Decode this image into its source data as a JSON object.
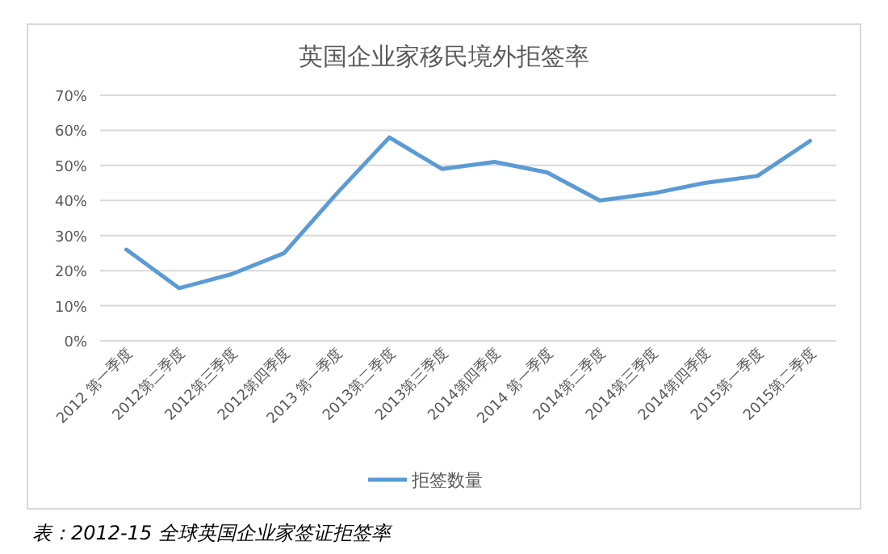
{
  "chart_data": {
    "type": "line",
    "title": "英国企业家移民境外拒签率",
    "categories": [
      "2012 第一季度",
      "2012第二季度",
      "2012第三季度",
      "2012第四季度",
      "2013 第一季度",
      "2013第二季度",
      "2013第三季度",
      "2014第四季度",
      "2014 第一季度",
      "2014第二季度",
      "2014第三季度",
      "2014第四季度",
      "2015第一季度",
      "2015第二季度"
    ],
    "series": [
      {
        "name": "拒签数量",
        "color": "#5b9bd5",
        "values": [
          26,
          15,
          19,
          25,
          42,
          58,
          49,
          51,
          48,
          40,
          42,
          45,
          47,
          57
        ]
      }
    ],
    "ylim": [
      0,
      70
    ],
    "yticks": [
      {
        "value": 0,
        "label": "0%"
      },
      {
        "value": 10,
        "label": "10%"
      },
      {
        "value": 20,
        "label": "20%"
      },
      {
        "value": 30,
        "label": "30%"
      },
      {
        "value": 40,
        "label": "40%"
      },
      {
        "value": 50,
        "label": "50%"
      },
      {
        "value": 60,
        "label": "60%"
      },
      {
        "value": 70,
        "label": "70%"
      }
    ],
    "grid": "y",
    "legend": "bottom",
    "marker": "none",
    "line_style": "solid",
    "annotations": [
      "表：2012-15 全球英国企业家签证拒签率"
    ]
  }
}
